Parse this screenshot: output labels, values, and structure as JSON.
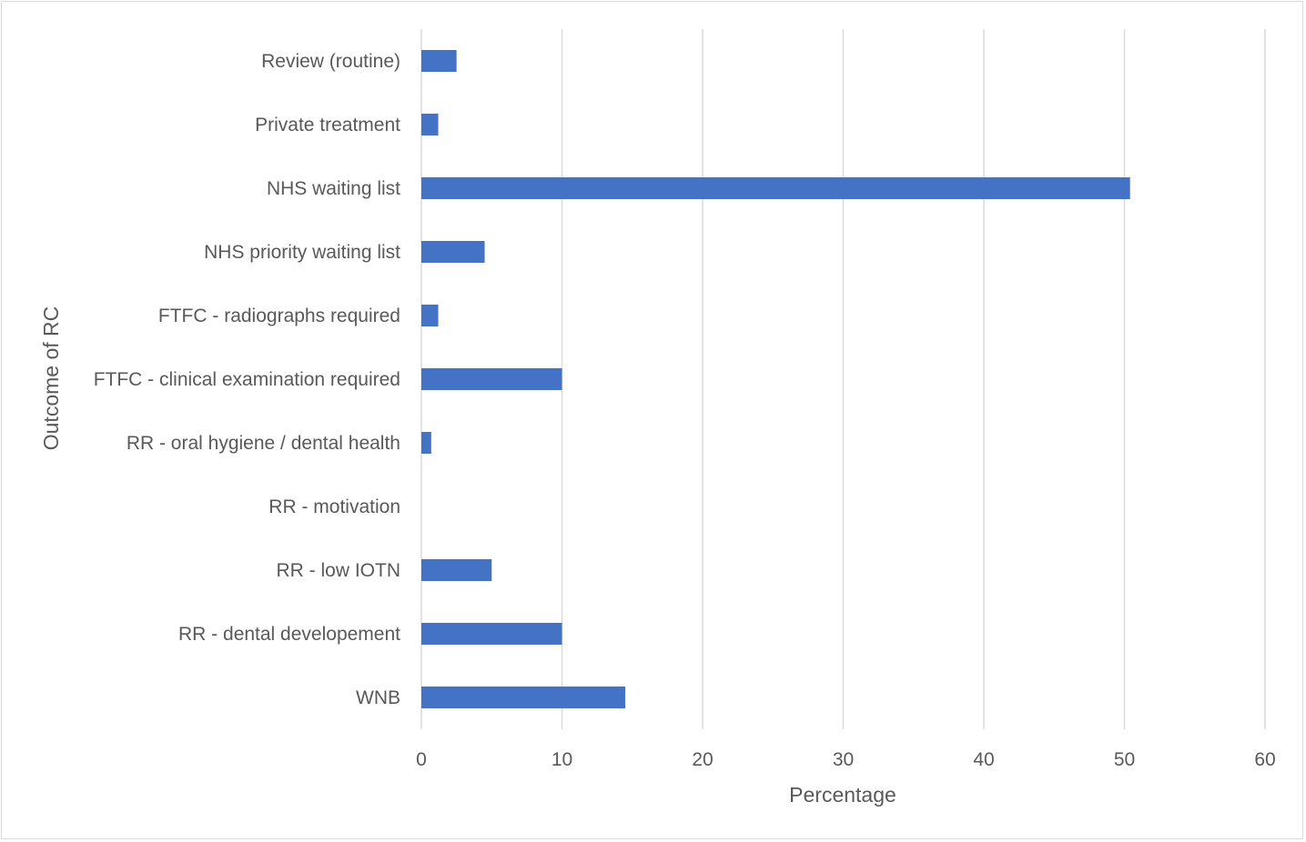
{
  "chart_data": {
    "type": "bar",
    "orientation": "horizontal",
    "categories": [
      "Review (routine)",
      "Private treatment",
      "NHS waiting list",
      "NHS priority waiting list",
      "FTFC - radiographs required",
      "FTFC - clinical examination required",
      "RR - oral hygiene / dental health",
      "RR - motivation",
      "RR - low IOTN",
      "RR - dental developement",
      "WNB"
    ],
    "values": [
      2.5,
      1.2,
      50.4,
      4.5,
      1.2,
      10.0,
      0.7,
      0,
      5.0,
      10.0,
      14.5
    ],
    "title": "",
    "xlabel": "Percentage",
    "ylabel": "Outcome of RC",
    "xlim": [
      0,
      60
    ],
    "xticks": [
      "0",
      "10",
      "20",
      "30",
      "40",
      "50",
      "60"
    ],
    "grid": true,
    "legend": "none",
    "bar_color": "#4472c4",
    "grid_color": "#d9d9d9"
  }
}
